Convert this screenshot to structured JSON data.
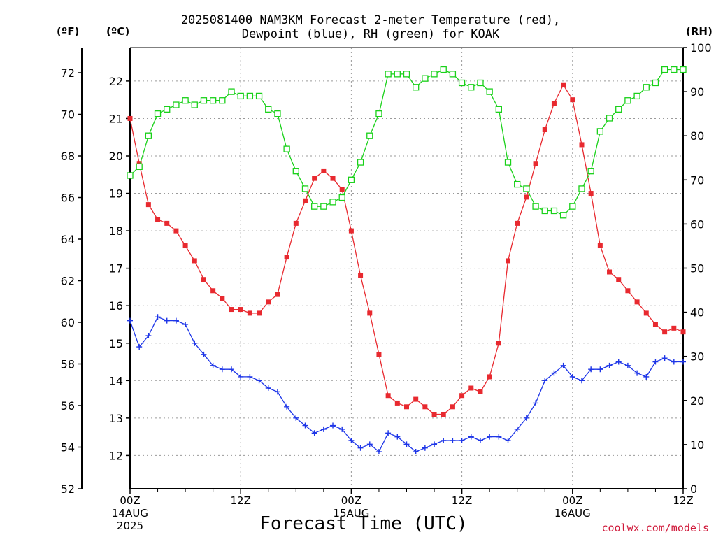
{
  "title_line1": "2025081400 NAM3KM Forecast 2-meter Temperature (red),",
  "title_line2": "Dewpoint (blue), RH (green) for KOAK",
  "unit_f": "(ºF)",
  "unit_c": "(ºC)",
  "unit_rh": "(RH)",
  "xlabel": "Forecast Time (UTC)",
  "credit": "coolwx.com/models",
  "colors": {
    "temperature": "#e8292f",
    "dewpoint": "#1d35e8",
    "rh": "#19d119",
    "grid": "#9a9a9a",
    "axis": "#000000"
  },
  "chart_data": {
    "type": "line",
    "title": "2025081400 NAM3KM Forecast 2-meter Temperature (red), Dewpoint (blue), RH (green) for KOAK",
    "xlabel": "Forecast Time (UTC)",
    "x_hours": [
      0,
      1,
      2,
      3,
      4,
      5,
      6,
      7,
      8,
      9,
      10,
      11,
      12,
      13,
      14,
      15,
      16,
      17,
      18,
      19,
      20,
      21,
      22,
      23,
      24,
      25,
      26,
      27,
      28,
      29,
      30,
      31,
      32,
      33,
      34,
      35,
      36,
      37,
      38,
      39,
      40,
      41,
      42,
      43,
      44,
      45,
      46,
      47,
      48,
      49,
      50,
      51,
      52,
      53,
      54,
      55,
      56,
      57,
      58,
      59,
      60
    ],
    "xlim": [
      0,
      60
    ],
    "x_ticks": [
      {
        "hour": 0,
        "lines": [
          "00Z",
          "14AUG",
          "2025"
        ]
      },
      {
        "hour": 12,
        "lines": [
          "12Z"
        ]
      },
      {
        "hour": 24,
        "lines": [
          "00Z",
          "15AUG"
        ]
      },
      {
        "hour": 36,
        "lines": [
          "12Z"
        ]
      },
      {
        "hour": 48,
        "lines": [
          "00Z",
          "16AUG"
        ]
      },
      {
        "hour": 60,
        "lines": [
          "12Z"
        ]
      }
    ],
    "y_left_f": {
      "label": "(ºF)",
      "ylim": [
        52,
        73.3
      ],
      "ticks": [
        52,
        54,
        56,
        58,
        60,
        62,
        64,
        66,
        68,
        70,
        72
      ]
    },
    "y_left_c": {
      "label": "(ºC)",
      "ticks": [
        12,
        13,
        14,
        15,
        16,
        17,
        18,
        19,
        20,
        21,
        22
      ]
    },
    "y_right_rh": {
      "label": "(RH)",
      "ylim": [
        0,
        100
      ],
      "ticks": [
        0,
        10,
        20,
        30,
        40,
        50,
        60,
        70,
        80,
        90,
        100
      ]
    },
    "grid": true,
    "series": [
      {
        "key": "temperature",
        "unit": "C",
        "marker": "filled-square",
        "values": [
          21.0,
          19.8,
          18.7,
          18.3,
          18.2,
          18.0,
          17.6,
          17.2,
          16.7,
          16.4,
          16.2,
          15.9,
          15.9,
          15.8,
          15.8,
          16.1,
          16.3,
          17.3,
          18.2,
          18.8,
          19.4,
          19.6,
          19.4,
          19.1,
          18.0,
          16.8,
          15.8,
          14.7,
          13.6,
          13.4,
          13.3,
          13.5,
          13.3,
          13.1,
          13.1,
          13.3,
          13.6,
          13.8,
          13.7,
          14.1,
          15.0,
          17.2,
          18.2,
          18.9,
          19.8,
          20.7,
          21.4,
          21.9,
          21.5,
          20.3,
          19.0,
          17.6,
          16.9,
          16.7,
          16.4,
          16.1,
          15.8,
          15.5,
          15.3,
          15.4,
          15.3
        ]
      },
      {
        "key": "dewpoint",
        "unit": "C",
        "marker": "plus",
        "values": [
          15.6,
          14.9,
          15.2,
          15.7,
          15.6,
          15.6,
          15.5,
          15.0,
          14.7,
          14.4,
          14.3,
          14.3,
          14.1,
          14.1,
          14.0,
          13.8,
          13.7,
          13.3,
          13.0,
          12.8,
          12.6,
          12.7,
          12.8,
          12.7,
          12.4,
          12.2,
          12.3,
          12.1,
          12.6,
          12.5,
          12.3,
          12.1,
          12.2,
          12.3,
          12.4,
          12.4,
          12.4,
          12.5,
          12.4,
          12.5,
          12.5,
          12.4,
          12.7,
          13.0,
          13.4,
          14.0,
          14.2,
          14.4,
          14.1,
          14.0,
          14.3,
          14.3,
          14.4,
          14.5,
          14.4,
          14.2,
          14.1,
          14.5,
          14.6,
          14.5,
          14.5
        ]
      },
      {
        "key": "rh",
        "unit": "%",
        "marker": "open-square",
        "values": [
          71,
          73,
          80,
          85,
          86,
          87,
          88,
          87,
          88,
          88,
          88,
          90,
          89,
          89,
          89,
          86,
          85,
          77,
          72,
          68,
          64,
          64,
          65,
          66,
          70,
          74,
          80,
          85,
          94,
          94,
          94,
          91,
          93,
          94,
          95,
          94,
          92,
          91,
          92,
          90,
          86,
          74,
          69,
          68,
          64,
          63,
          63,
          62,
          64,
          68,
          72,
          81,
          84,
          86,
          88,
          89,
          91,
          92,
          95,
          95,
          95
        ]
      }
    ]
  }
}
